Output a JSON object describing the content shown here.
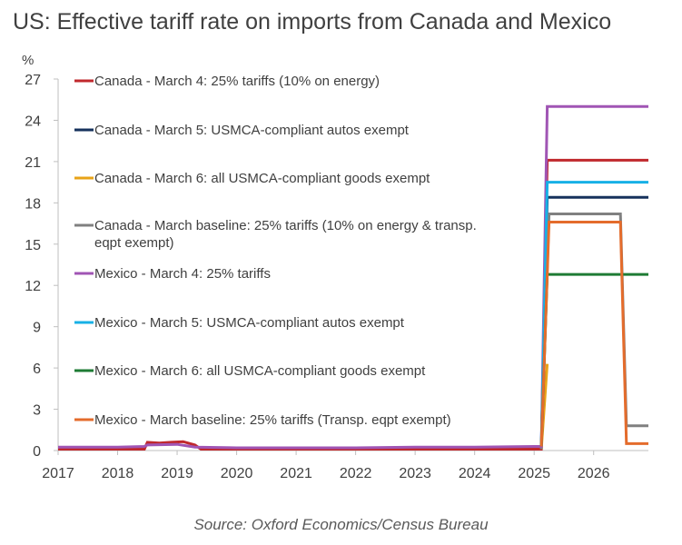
{
  "chart_data": {
    "type": "line",
    "title": "US: Effective tariff rate on imports from Canada and Mexico",
    "ylabel": "%",
    "source": "Source: Oxford Economics/Census Bureau",
    "ylim": [
      0,
      27
    ],
    "yticks": [
      0,
      3,
      6,
      9,
      12,
      15,
      18,
      21,
      24,
      27
    ],
    "xlim": [
      2017,
      2026.92
    ],
    "xticks": [
      "2017",
      "2018",
      "2019",
      "2020",
      "2021",
      "2022",
      "2023",
      "2024",
      "2025",
      "2026"
    ],
    "grid": false,
    "legend_placement": "left, inside plot",
    "series": [
      {
        "name": "Canada - March 4: 25% tariffs (10% on energy)",
        "color": "#C0282D",
        "points": [
          [
            2017,
            0.1
          ],
          [
            2018,
            0.1
          ],
          [
            2018.45,
            0.1
          ],
          [
            2018.5,
            0.6
          ],
          [
            2018.7,
            0.55
          ],
          [
            2018.9,
            0.6
          ],
          [
            2019.1,
            0.65
          ],
          [
            2019.3,
            0.4
          ],
          [
            2019.4,
            0.1
          ],
          [
            2020,
            0.1
          ],
          [
            2021,
            0.1
          ],
          [
            2022,
            0.1
          ],
          [
            2023,
            0.1
          ],
          [
            2024,
            0.1
          ],
          [
            2025.0,
            0.1
          ],
          [
            2025.12,
            0.1
          ],
          [
            2025.22,
            21.1
          ],
          [
            2026.92,
            21.1
          ]
        ]
      },
      {
        "name": "Canada - March 5: USMCA-compliant autos exempt",
        "color": "#16325C",
        "points": [
          [
            2025.12,
            0.1
          ],
          [
            2025.22,
            18.4
          ],
          [
            2026.92,
            18.4
          ]
        ]
      },
      {
        "name": "Canada - March 6: all USMCA-compliant goods exempt",
        "color": "#E8A317",
        "points": [
          [
            2025.12,
            0.1
          ],
          [
            2025.22,
            6.3
          ]
        ]
      },
      {
        "name": "Canada - March baseline: 25% tariffs (10% on energy & transp. eqpt exempt)",
        "color": "#808080",
        "points": [
          [
            2025.12,
            0.1
          ],
          [
            2025.25,
            17.2
          ],
          [
            2026.45,
            17.2
          ],
          [
            2026.55,
            1.8
          ],
          [
            2026.92,
            1.8
          ]
        ]
      },
      {
        "name": "Mexico - March 4: 25% tariffs",
        "color": "#A055B4",
        "points": [
          [
            2017,
            0.25
          ],
          [
            2018,
            0.25
          ],
          [
            2018.45,
            0.3
          ],
          [
            2018.5,
            0.4
          ],
          [
            2019.0,
            0.45
          ],
          [
            2019.3,
            0.25
          ],
          [
            2020,
            0.2
          ],
          [
            2021,
            0.2
          ],
          [
            2022,
            0.2
          ],
          [
            2023,
            0.25
          ],
          [
            2024,
            0.25
          ],
          [
            2025.0,
            0.3
          ],
          [
            2025.12,
            0.3
          ],
          [
            2025.22,
            25.0
          ],
          [
            2026.92,
            25.0
          ]
        ]
      },
      {
        "name": "Mexico - March 5: USMCA-compliant autos exempt",
        "color": "#17B0E6",
        "points": [
          [
            2025.12,
            0.3
          ],
          [
            2025.22,
            19.5
          ],
          [
            2026.92,
            19.5
          ]
        ]
      },
      {
        "name": "Mexico - March 6: all USMCA-compliant goods exempt",
        "color": "#1E7B34",
        "points": [
          [
            2025.12,
            0.3
          ],
          [
            2025.22,
            12.8
          ],
          [
            2026.92,
            12.8
          ]
        ]
      },
      {
        "name": "Mexico - March baseline: 25% tariffs (Transp. eqpt exempt)",
        "color": "#E46C2C",
        "points": [
          [
            2025.12,
            0.3
          ],
          [
            2025.25,
            16.6
          ],
          [
            2026.45,
            16.6
          ],
          [
            2026.55,
            0.5
          ],
          [
            2026.92,
            0.5
          ]
        ]
      }
    ]
  }
}
